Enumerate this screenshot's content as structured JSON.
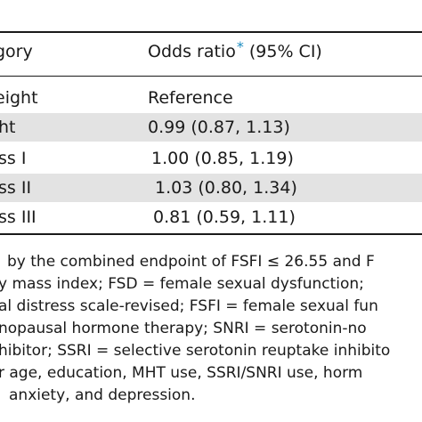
{
  "table": {
    "header": {
      "category": "gory",
      "odds_ratio": "Odds ratio",
      "odds_ratio_mark": "*",
      "ci": " (95% CI)"
    },
    "rows": [
      {
        "category": "eight",
        "value": "Reference",
        "shaded": false
      },
      {
        "category": "ht",
        "value": "0.99 (0.87, 1.13)",
        "shaded": true
      },
      {
        "category": "ss I",
        "value": "1.00 (0.85, 1.19)",
        "shaded": false
      },
      {
        "category": "ss II",
        "value": "1.03 (0.80, 1.34)",
        "shaded": true
      },
      {
        "category": "ss III",
        "value": "0.81 (0.59, 1.11)",
        "shaded": false
      }
    ]
  },
  "footnote_lines": [
    "by the combined endpoint of FSFI ≤ 26.55 and F",
    "y mass index; FSD = female sexual dysfunction;",
    "al distress scale-revised; FSFI = female sexual fun",
    "nopausal hormone therapy; SNRI = serotonin-no",
    "hibitor; SSRI = selective serotonin reuptake inhibito",
    "r age, education, MHT use, SSRI/SNRI use, horm",
    "anxiety, and depression."
  ],
  "colors": {
    "row_shade": "#e3e3e3",
    "marker": "#1a8bbf",
    "text": "#1a1a1a"
  }
}
